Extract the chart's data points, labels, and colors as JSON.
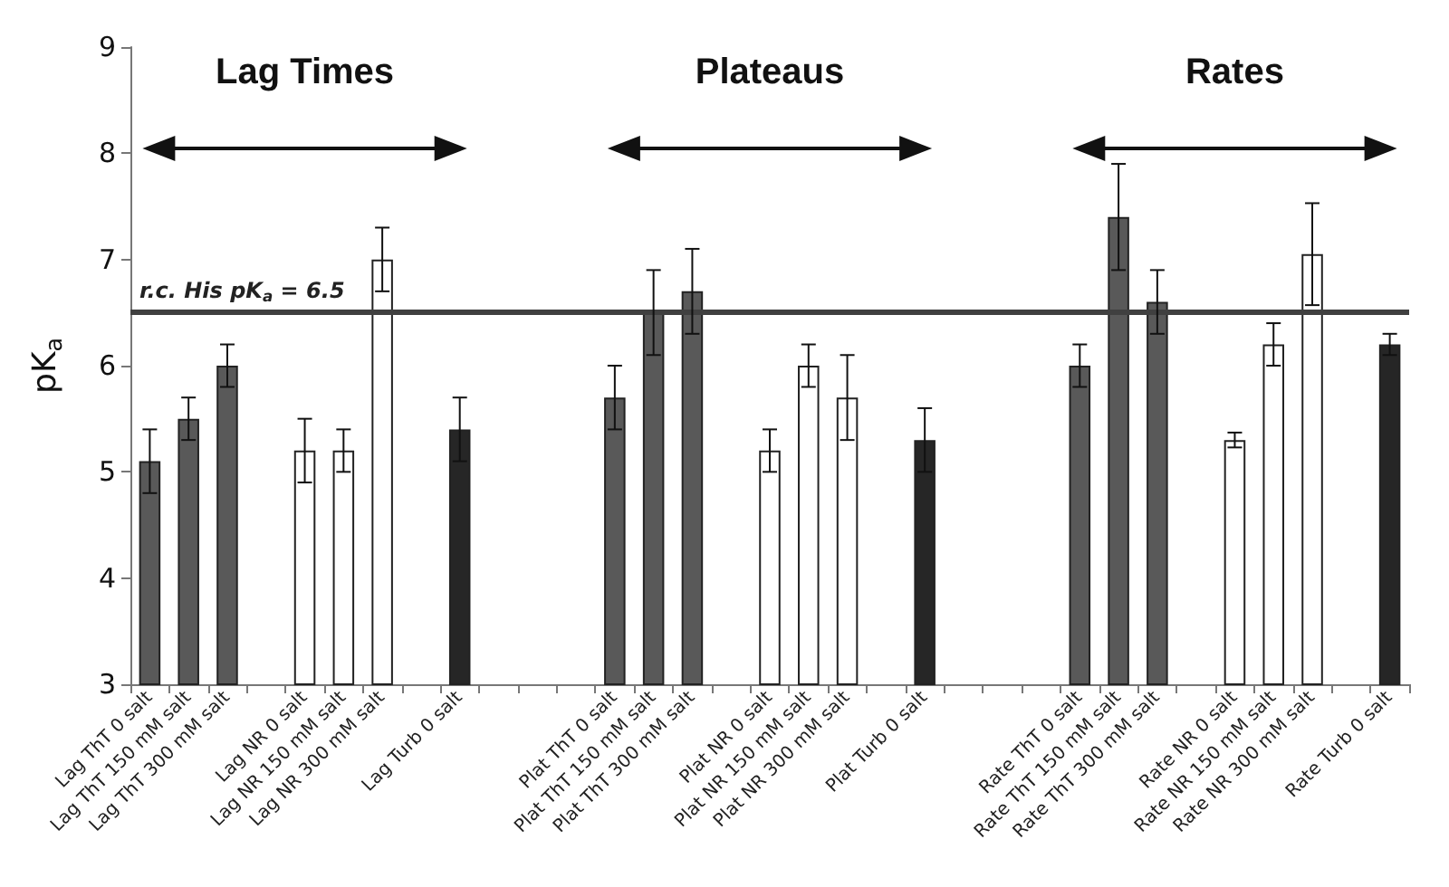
{
  "chart_data": {
    "type": "bar",
    "ylabel": "pK$_{a}$",
    "categories": [
      "Lag ThT 0 salt",
      "Lag ThT 150 mM salt",
      "Lag ThT 300 mM salt",
      null,
      "Lag NR 0 salt",
      "Lag NR 150 mM salt",
      "Lag NR 300 mM salt",
      null,
      "Lag Turb 0 salt",
      null,
      null,
      null,
      "Plat ThT 0 salt",
      "Plat ThT 150 mM salt",
      "Plat ThT 300 mM salt",
      null,
      "Plat NR 0 salt",
      "Plat NR 150 mM salt",
      "Plat NR 300 mM salt",
      null,
      "Plat Turb 0 salt",
      null,
      null,
      null,
      "Rate ThT 0 salt",
      "Rate ThT 150 mM salt",
      "Rate ThT 300 mM salt",
      null,
      "Rate NR 0 salt",
      "Rate NR 150 mM salt",
      "Rate NR 300 mM salt",
      null,
      "Rate Turb 0 salt"
    ],
    "values": [
      5.1,
      5.5,
      6.0,
      null,
      5.2,
      5.2,
      7.0,
      null,
      5.4,
      null,
      null,
      null,
      5.7,
      6.5,
      6.7,
      null,
      5.2,
      6.0,
      5.7,
      null,
      5.3,
      null,
      null,
      null,
      6.0,
      7.4,
      6.6,
      null,
      5.3,
      6.2,
      7.05,
      null,
      6.2
    ],
    "errors": [
      0.3,
      0.2,
      0.2,
      null,
      0.3,
      0.2,
      0.3,
      null,
      0.3,
      null,
      null,
      null,
      0.3,
      0.4,
      0.4,
      null,
      0.2,
      0.2,
      0.4,
      null,
      0.3,
      null,
      null,
      null,
      0.2,
      0.5,
      0.3,
      null,
      0.07,
      0.2,
      0.48,
      null,
      0.1
    ],
    "colors": [
      "#595959",
      "#595959",
      "#595959",
      null,
      "#ffffff",
      "#ffffff",
      "#ffffff",
      null,
      "#262626",
      null,
      null,
      null,
      "#595959",
      "#595959",
      "#595959",
      null,
      "#ffffff",
      "#ffffff",
      "#ffffff",
      null,
      "#262626",
      null,
      null,
      null,
      "#595959",
      "#595959",
      "#595959",
      null,
      "#ffffff",
      "#ffffff",
      "#ffffff",
      null,
      "#262626"
    ],
    "ylim": [
      3,
      9
    ],
    "yticks": [
      3,
      4,
      5,
      6,
      7,
      8,
      9
    ],
    "grid": false,
    "ref_lines": [
      {
        "axis": "y",
        "value": 6.5,
        "label": "r.c. His pK$_{a}$ = 6.5",
        "color": "#404040"
      }
    ],
    "annotations": [
      "Lag Times",
      "Plateaus",
      "Rates"
    ]
  }
}
